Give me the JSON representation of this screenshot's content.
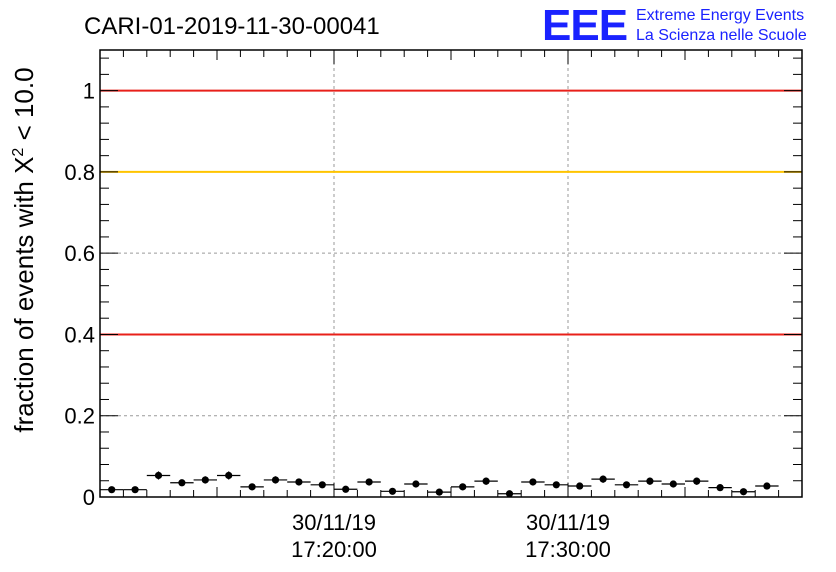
{
  "chart_data": {
    "type": "scatter",
    "title": "CARI-01-2019-11-30-00041",
    "ylabel": {
      "prefix": "fraction of events with ",
      "symbol": "X",
      "superscript": "2",
      "suffix": " < 10.0"
    },
    "ylim": [
      0,
      1.1
    ],
    "yticks": [
      {
        "value": 0,
        "label": "0"
      },
      {
        "value": 0.2,
        "label": "0.2"
      },
      {
        "value": 0.4,
        "label": "0.4"
      },
      {
        "value": 0.6,
        "label": "0.6"
      },
      {
        "value": 0.8,
        "label": "0.8"
      },
      {
        "value": 1,
        "label": "1"
      }
    ],
    "xlim": [
      0,
      30
    ],
    "xticks": [
      {
        "value": 10,
        "date": "30/11/19",
        "time": "17:20:00"
      },
      {
        "value": 20,
        "date": "30/11/19",
        "time": "17:30:00"
      }
    ],
    "grid": true,
    "reference_lines": [
      {
        "y": 1.0,
        "color": "#e8201a"
      },
      {
        "y": 0.8,
        "color": "#ffc400"
      },
      {
        "y": 0.4,
        "color": "#e8201a"
      }
    ],
    "points": [
      {
        "x": 0.5,
        "y": 0.018,
        "err": 0.006
      },
      {
        "x": 1.5,
        "y": 0.018,
        "err": 0.006
      },
      {
        "x": 2.5,
        "y": 0.053,
        "err": 0.01
      },
      {
        "x": 3.5,
        "y": 0.035,
        "err": 0.008
      },
      {
        "x": 4.5,
        "y": 0.042,
        "err": 0.009
      },
      {
        "x": 5.5,
        "y": 0.053,
        "err": 0.01
      },
      {
        "x": 6.5,
        "y": 0.025,
        "err": 0.007
      },
      {
        "x": 7.5,
        "y": 0.042,
        "err": 0.009
      },
      {
        "x": 8.5,
        "y": 0.037,
        "err": 0.008
      },
      {
        "x": 9.5,
        "y": 0.03,
        "err": 0.008
      },
      {
        "x": 10.5,
        "y": 0.019,
        "err": 0.006
      },
      {
        "x": 11.5,
        "y": 0.037,
        "err": 0.008
      },
      {
        "x": 12.5,
        "y": 0.014,
        "err": 0.005
      },
      {
        "x": 13.5,
        "y": 0.032,
        "err": 0.008
      },
      {
        "x": 14.5,
        "y": 0.012,
        "err": 0.005
      },
      {
        "x": 15.5,
        "y": 0.025,
        "err": 0.007
      },
      {
        "x": 16.5,
        "y": 0.039,
        "err": 0.009
      },
      {
        "x": 17.5,
        "y": 0.008,
        "err": 0.004
      },
      {
        "x": 18.5,
        "y": 0.037,
        "err": 0.008
      },
      {
        "x": 19.5,
        "y": 0.03,
        "err": 0.008
      },
      {
        "x": 20.5,
        "y": 0.027,
        "err": 0.007
      },
      {
        "x": 21.5,
        "y": 0.044,
        "err": 0.009
      },
      {
        "x": 22.5,
        "y": 0.03,
        "err": 0.008
      },
      {
        "x": 23.5,
        "y": 0.039,
        "err": 0.009
      },
      {
        "x": 24.5,
        "y": 0.032,
        "err": 0.008
      },
      {
        "x": 25.5,
        "y": 0.039,
        "err": 0.009
      },
      {
        "x": 26.5,
        "y": 0.023,
        "err": 0.007
      },
      {
        "x": 27.5,
        "y": 0.013,
        "err": 0.005
      },
      {
        "x": 28.5,
        "y": 0.027,
        "err": 0.007
      }
    ]
  },
  "logo": {
    "letters": "EEE",
    "line1": "Extreme Energy Events",
    "line2": "La Scienza nelle Scuole"
  }
}
